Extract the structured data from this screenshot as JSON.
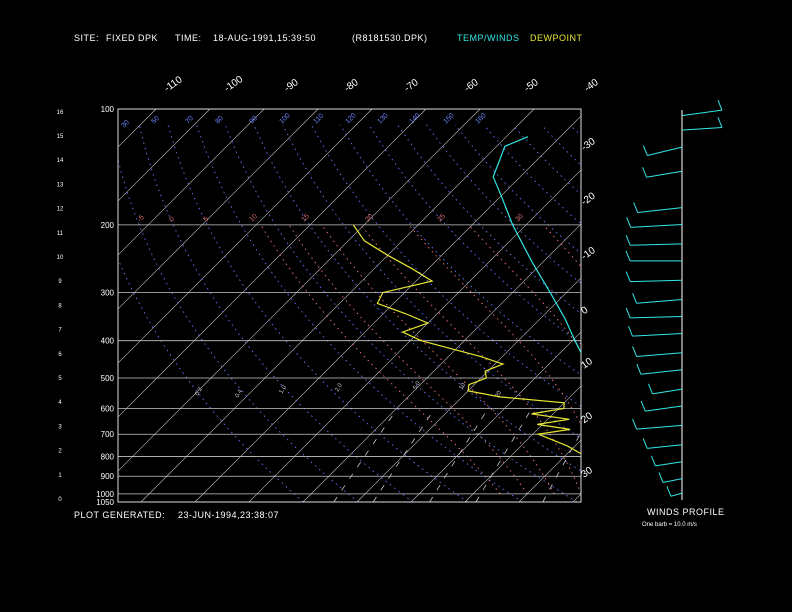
{
  "header": {
    "site_label": "SITE:",
    "site_value": "FIXED DPK",
    "time_label": "TIME:",
    "time_value": "18-AUG-1991,15:39:50",
    "file_name": "(R8181530.DPK)",
    "legend_temp": "TEMP/WINDS",
    "legend_dew": "DEWPOINT"
  },
  "footer": {
    "generated_label": "PLOT GENERATED:",
    "generated_value": "23-JUN-1994,23:38:07",
    "winds_title": "WINDS PROFILE",
    "barb_note": "One barb = 10.0 m/s"
  },
  "colors": {
    "temperature": "#33e6e6",
    "dewpoint": "#e6e633",
    "isotherm": "#c8c8c8",
    "dry_adiabat": "#5a6ee6",
    "moist_adiabat": "#dc6e6e",
    "isobar": "#c8c8c8",
    "axis_text": "#ffffff"
  },
  "chart_data": {
    "type": "skew-t",
    "title": "",
    "pressure_levels_mb": [
      100,
      200,
      300,
      400,
      500,
      600,
      700,
      800,
      900,
      1000,
      1050
    ],
    "height_ticks_km": [
      0,
      1,
      2,
      3,
      4,
      5,
      6,
      7,
      8,
      9,
      10,
      11,
      12,
      13,
      14,
      15,
      16
    ],
    "isotherm_top_labels": [
      "-110",
      "-100",
      "-90",
      "-80",
      "-70",
      "-60",
      "-50",
      "-40"
    ],
    "isotherm_right_labels": [
      "-30",
      "-20",
      "-10",
      "0",
      "10",
      "20",
      "30"
    ],
    "dry_adiabat_labels": [
      "30",
      "50",
      "70",
      "80",
      "90",
      "100",
      "110",
      "120",
      "130",
      "140",
      "150",
      "160"
    ],
    "moist_adiabat_labels": [
      "-5",
      "0",
      "5",
      "10",
      "15",
      "20",
      "25",
      "30"
    ],
    "mixing_ratio_labels": [
      "0.2",
      "0.4",
      "1.0",
      "2.0",
      "5.0",
      "10",
      "20"
    ],
    "temperature_profile": [
      {
        "p": 1030,
        "t": 25.5
      },
      {
        "p": 1000,
        "t": 22.5
      },
      {
        "p": 950,
        "t": 19.0
      },
      {
        "p": 900,
        "t": 16.0
      },
      {
        "p": 850,
        "t": 13.5
      },
      {
        "p": 800,
        "t": 11.0
      },
      {
        "p": 750,
        "t": 8.5
      },
      {
        "p": 700,
        "t": 5.0
      },
      {
        "p": 650,
        "t": 1.5
      },
      {
        "p": 600,
        "t": -2.0
      },
      {
        "p": 550,
        "t": -5.5
      },
      {
        "p": 500,
        "t": -9.5
      },
      {
        "p": 450,
        "t": -14.0
      },
      {
        "p": 400,
        "t": -19.5
      },
      {
        "p": 350,
        "t": -25.5
      },
      {
        "p": 300,
        "t": -33.0
      },
      {
        "p": 250,
        "t": -42.0
      },
      {
        "p": 200,
        "t": -52.5
      },
      {
        "p": 170,
        "t": -59.5
      },
      {
        "p": 150,
        "t": -65.0
      },
      {
        "p": 135,
        "t": -67.0
      },
      {
        "p": 125,
        "t": -68.5
      },
      {
        "p": 118,
        "t": -66.0
      }
    ],
    "dewpoint_profile": [
      {
        "p": 1000,
        "t": 18.5
      },
      {
        "p": 950,
        "t": 17.5
      },
      {
        "p": 900,
        "t": 14.0
      },
      {
        "p": 850,
        "t": 9.0
      },
      {
        "p": 800,
        "t": 4.0
      },
      {
        "p": 750,
        "t": -1.5
      },
      {
        "p": 700,
        "t": -9.0
      },
      {
        "p": 680,
        "t": -4.0
      },
      {
        "p": 660,
        "t": -11.0
      },
      {
        "p": 640,
        "t": -6.0
      },
      {
        "p": 620,
        "t": -14.0
      },
      {
        "p": 600,
        "t": -9.0
      },
      {
        "p": 580,
        "t": -10.0
      },
      {
        "p": 560,
        "t": -23.0
      },
      {
        "p": 540,
        "t": -30.0
      },
      {
        "p": 520,
        "t": -31.0
      },
      {
        "p": 500,
        "t": -29.0
      },
      {
        "p": 480,
        "t": -30.5
      },
      {
        "p": 460,
        "t": -28.5
      },
      {
        "p": 440,
        "t": -34.0
      },
      {
        "p": 400,
        "t": -48.0
      },
      {
        "p": 380,
        "t": -53.0
      },
      {
        "p": 360,
        "t": -50.0
      },
      {
        "p": 340,
        "t": -56.0
      },
      {
        "p": 320,
        "t": -63.0
      },
      {
        "p": 300,
        "t": -64.0
      },
      {
        "p": 280,
        "t": -57.0
      },
      {
        "p": 260,
        "t": -63.0
      },
      {
        "p": 240,
        "t": -70.0
      },
      {
        "p": 220,
        "t": -77.0
      },
      {
        "p": 200,
        "t": -82.0
      }
    ],
    "wind_profile": [
      {
        "h_km": 0.2,
        "speed_ms": 3,
        "dir_deg": 210
      },
      {
        "h_km": 0.8,
        "speed_ms": 5,
        "dir_deg": 230
      },
      {
        "h_km": 1.5,
        "speed_ms": 7,
        "dir_deg": 240
      },
      {
        "h_km": 2.2,
        "speed_ms": 9,
        "dir_deg": 250
      },
      {
        "h_km": 3.0,
        "speed_ms": 12,
        "dir_deg": 255
      },
      {
        "h_km": 3.8,
        "speed_ms": 10,
        "dir_deg": 245
      },
      {
        "h_km": 4.5,
        "speed_ms": 8,
        "dir_deg": 240
      },
      {
        "h_km": 5.3,
        "speed_ms": 11,
        "dir_deg": 250
      },
      {
        "h_km": 6.0,
        "speed_ms": 12,
        "dir_deg": 255
      },
      {
        "h_km": 6.8,
        "speed_ms": 13,
        "dir_deg": 260
      },
      {
        "h_km": 7.5,
        "speed_ms": 14,
        "dir_deg": 265
      },
      {
        "h_km": 8.2,
        "speed_ms": 12,
        "dir_deg": 255
      },
      {
        "h_km": 9.0,
        "speed_ms": 15,
        "dir_deg": 265
      },
      {
        "h_km": 9.8,
        "speed_ms": 16,
        "dir_deg": 270
      },
      {
        "h_km": 10.5,
        "speed_ms": 15,
        "dir_deg": 265
      },
      {
        "h_km": 11.3,
        "speed_ms": 14,
        "dir_deg": 260
      },
      {
        "h_km": 12.0,
        "speed_ms": 12,
        "dir_deg": 250
      },
      {
        "h_km": 13.5,
        "speed_ms": 10,
        "dir_deg": 240
      },
      {
        "h_km": 14.5,
        "speed_ms": 11,
        "dir_deg": 230
      },
      {
        "h_km": 15.2,
        "speed_ms": 13,
        "dir_deg": 280
      },
      {
        "h_km": 15.8,
        "speed_ms": 15,
        "dir_deg": 290
      }
    ]
  }
}
